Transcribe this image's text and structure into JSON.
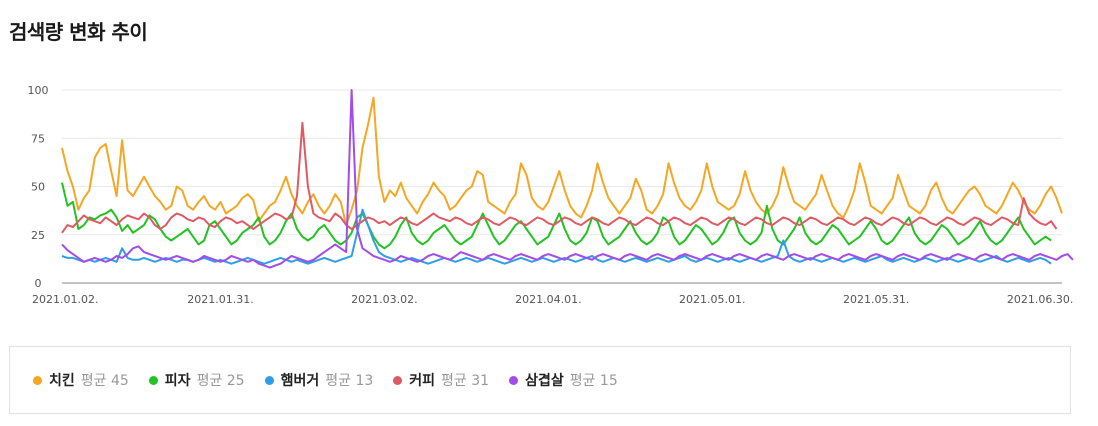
{
  "title": "검색량 변화 추이",
  "chart_data": {
    "type": "line",
    "title": "검색량 변화 추이",
    "xlabel": "",
    "ylabel": "",
    "ylim": [
      0,
      100
    ],
    "y_ticks": [
      0,
      25,
      50,
      75,
      100
    ],
    "x_ticks": [
      "2021.01.02.",
      "2021.01.31.",
      "2021.03.02.",
      "2021.04.01.",
      "2021.05.01.",
      "2021.05.31.",
      "2021.06.30."
    ],
    "x_start": "2021-01-02",
    "grid": true,
    "legend_position": "bottom",
    "series": [
      {
        "name": "치킨",
        "color": "#f5a623",
        "avg_label": "평균 45",
        "values": [
          70,
          58,
          50,
          38,
          44,
          48,
          65,
          70,
          72,
          58,
          45,
          74,
          48,
          45,
          50,
          55,
          50,
          45,
          42,
          38,
          40,
          50,
          48,
          40,
          38,
          42,
          45,
          40,
          38,
          42,
          36,
          38,
          40,
          44,
          46,
          43,
          32,
          36,
          40,
          42,
          48,
          55,
          46,
          40,
          36,
          42,
          46,
          40,
          36,
          40,
          46,
          42,
          30,
          38,
          48,
          70,
          82,
          96,
          55,
          42,
          48,
          45,
          52,
          44,
          40,
          36,
          42,
          46,
          52,
          48,
          45,
          38,
          40,
          44,
          48,
          50,
          58,
          56,
          42,
          40,
          38,
          36,
          42,
          46,
          62,
          56,
          44,
          40,
          38,
          42,
          50,
          58,
          48,
          40,
          36,
          34,
          40,
          48,
          62,
          52,
          44,
          40,
          36,
          40,
          44,
          54,
          48,
          38,
          36,
          40,
          46,
          62,
          52,
          44,
          40,
          38,
          42,
          48,
          62,
          50,
          42,
          40,
          38,
          40,
          46,
          58,
          48,
          42,
          38,
          36,
          40,
          46,
          60,
          50,
          42,
          40,
          38,
          42,
          46,
          56,
          48,
          40,
          36,
          34,
          40,
          48,
          62,
          52,
          40,
          38,
          36,
          40,
          44,
          56,
          48,
          40,
          38,
          36,
          40,
          48,
          52,
          44,
          38,
          36,
          40,
          44,
          48,
          50,
          46,
          40,
          38,
          36,
          40,
          46,
          52,
          48,
          42,
          38,
          36,
          40,
          46,
          50,
          44,
          36
        ]
      },
      {
        "name": "피자",
        "color": "#22c322",
        "avg_label": "평균 25",
        "values": [
          52,
          40,
          42,
          28,
          30,
          34,
          33,
          35,
          36,
          38,
          34,
          27,
          30,
          26,
          28,
          30,
          35,
          33,
          28,
          24,
          22,
          24,
          26,
          28,
          24,
          20,
          22,
          30,
          32,
          28,
          24,
          20,
          22,
          26,
          28,
          30,
          34,
          24,
          20,
          22,
          26,
          32,
          36,
          28,
          24,
          22,
          24,
          28,
          30,
          26,
          22,
          20,
          22,
          26,
          34,
          36,
          30,
          24,
          20,
          18,
          20,
          24,
          30,
          34,
          26,
          22,
          20,
          22,
          26,
          28,
          30,
          26,
          22,
          20,
          22,
          24,
          30,
          36,
          30,
          24,
          20,
          22,
          26,
          30,
          32,
          28,
          24,
          20,
          22,
          24,
          30,
          36,
          28,
          22,
          20,
          22,
          26,
          34,
          32,
          24,
          20,
          22,
          24,
          28,
          32,
          26,
          22,
          20,
          22,
          26,
          34,
          32,
          24,
          20,
          22,
          26,
          30,
          28,
          24,
          20,
          22,
          26,
          32,
          34,
          26,
          22,
          20,
          22,
          26,
          40,
          28,
          22,
          20,
          24,
          28,
          34,
          26,
          22,
          20,
          22,
          26,
          30,
          28,
          24,
          20,
          22,
          24,
          28,
          32,
          28,
          22,
          20,
          22,
          26,
          30,
          34,
          26,
          22,
          20,
          22,
          26,
          30,
          28,
          24,
          20,
          22,
          24,
          28,
          32,
          26,
          22,
          20,
          22,
          26,
          30,
          34,
          28,
          24,
          20,
          22,
          24,
          22
        ]
      },
      {
        "name": "햄버거",
        "color": "#2f9ee6",
        "avg_label": "평균 13",
        "values": [
          14,
          13,
          13,
          12,
          11,
          12,
          11,
          12,
          13,
          12,
          11,
          18,
          13,
          12,
          12,
          13,
          12,
          11,
          12,
          13,
          12,
          11,
          12,
          12,
          11,
          12,
          13,
          12,
          11,
          12,
          11,
          10,
          11,
          12,
          13,
          12,
          11,
          10,
          11,
          12,
          13,
          12,
          11,
          12,
          11,
          10,
          11,
          12,
          13,
          12,
          11,
          12,
          13,
          14,
          26,
          38,
          30,
          22,
          16,
          14,
          13,
          12,
          11,
          12,
          13,
          12,
          11,
          10,
          11,
          12,
          13,
          12,
          11,
          12,
          13,
          12,
          11,
          12,
          13,
          12,
          11,
          10,
          11,
          12,
          13,
          12,
          11,
          12,
          13,
          12,
          11,
          12,
          13,
          12,
          11,
          12,
          13,
          14,
          12,
          11,
          12,
          13,
          12,
          11,
          12,
          13,
          12,
          11,
          12,
          13,
          12,
          11,
          12,
          13,
          14,
          12,
          11,
          12,
          13,
          12,
          11,
          12,
          13,
          12,
          11,
          12,
          13,
          12,
          11,
          12,
          13,
          14,
          22,
          14,
          12,
          11,
          12,
          13,
          12,
          11,
          12,
          13,
          12,
          11,
          12,
          13,
          12,
          11,
          12,
          13,
          14,
          12,
          11,
          12,
          13,
          12,
          11,
          12,
          13,
          12,
          11,
          12,
          13,
          12,
          11,
          12,
          13,
          12,
          11,
          12,
          13,
          14,
          12,
          11,
          12,
          13,
          12,
          11,
          12,
          13,
          12,
          10
        ]
      },
      {
        "name": "커피",
        "color": "#e05a66",
        "avg_label": "평균 31",
        "values": [
          26,
          30,
          29,
          32,
          35,
          33,
          32,
          31,
          34,
          32,
          30,
          33,
          35,
          34,
          33,
          36,
          34,
          30,
          28,
          30,
          34,
          36,
          35,
          33,
          32,
          34,
          33,
          30,
          29,
          32,
          34,
          33,
          31,
          32,
          30,
          28,
          30,
          32,
          34,
          36,
          35,
          33,
          34,
          45,
          83,
          50,
          36,
          34,
          33,
          32,
          36,
          34,
          30,
          28,
          30,
          32,
          34,
          33,
          31,
          32,
          30,
          32,
          34,
          33,
          31,
          30,
          32,
          34,
          36,
          34,
          33,
          32,
          34,
          33,
          31,
          30,
          32,
          34,
          33,
          31,
          30,
          32,
          34,
          33,
          31,
          30,
          32,
          34,
          33,
          31,
          30,
          32,
          34,
          33,
          31,
          30,
          32,
          34,
          33,
          31,
          30,
          32,
          34,
          33,
          31,
          30,
          32,
          34,
          33,
          31,
          30,
          32,
          34,
          33,
          31,
          30,
          32,
          34,
          33,
          31,
          30,
          32,
          34,
          33,
          31,
          30,
          32,
          34,
          33,
          31,
          30,
          32,
          34,
          33,
          31,
          30,
          32,
          34,
          33,
          31,
          30,
          32,
          34,
          33,
          31,
          30,
          32,
          34,
          33,
          31,
          30,
          32,
          34,
          33,
          31,
          30,
          32,
          34,
          33,
          31,
          30,
          32,
          34,
          33,
          31,
          30,
          32,
          34,
          33,
          31,
          30,
          32,
          34,
          33,
          31,
          30,
          44,
          36,
          33,
          31,
          30,
          32,
          28
        ]
      },
      {
        "name": "삼겹살",
        "color": "#a24de8",
        "avg_label": "평균 15",
        "values": [
          20,
          17,
          15,
          13,
          11,
          12,
          13,
          12,
          11,
          12,
          14,
          13,
          15,
          18,
          19,
          16,
          15,
          14,
          13,
          12,
          13,
          14,
          13,
          12,
          11,
          12,
          14,
          13,
          12,
          11,
          12,
          14,
          13,
          12,
          11,
          12,
          10,
          9,
          8,
          9,
          10,
          12,
          14,
          13,
          12,
          11,
          12,
          14,
          16,
          18,
          20,
          18,
          16,
          100,
          28,
          18,
          16,
          14,
          13,
          12,
          11,
          12,
          14,
          13,
          12,
          11,
          12,
          14,
          15,
          14,
          13,
          12,
          14,
          16,
          15,
          14,
          13,
          12,
          14,
          15,
          14,
          13,
          12,
          14,
          15,
          14,
          13,
          12,
          14,
          15,
          14,
          13,
          12,
          14,
          15,
          14,
          13,
          12,
          14,
          15,
          14,
          13,
          12,
          14,
          15,
          14,
          13,
          12,
          14,
          15,
          14,
          13,
          12,
          14,
          15,
          14,
          13,
          12,
          14,
          15,
          14,
          13,
          12,
          14,
          15,
          14,
          13,
          12,
          14,
          15,
          14,
          13,
          12,
          14,
          15,
          14,
          13,
          12,
          14,
          15,
          14,
          13,
          12,
          14,
          15,
          14,
          13,
          12,
          14,
          15,
          14,
          13,
          12,
          14,
          15,
          14,
          13,
          12,
          14,
          15,
          14,
          13,
          12,
          14,
          15,
          14,
          13,
          12,
          14,
          15,
          14,
          13,
          12,
          14,
          15,
          14,
          13,
          12,
          14,
          15,
          14,
          13,
          12,
          14,
          15,
          12
        ]
      }
    ]
  }
}
